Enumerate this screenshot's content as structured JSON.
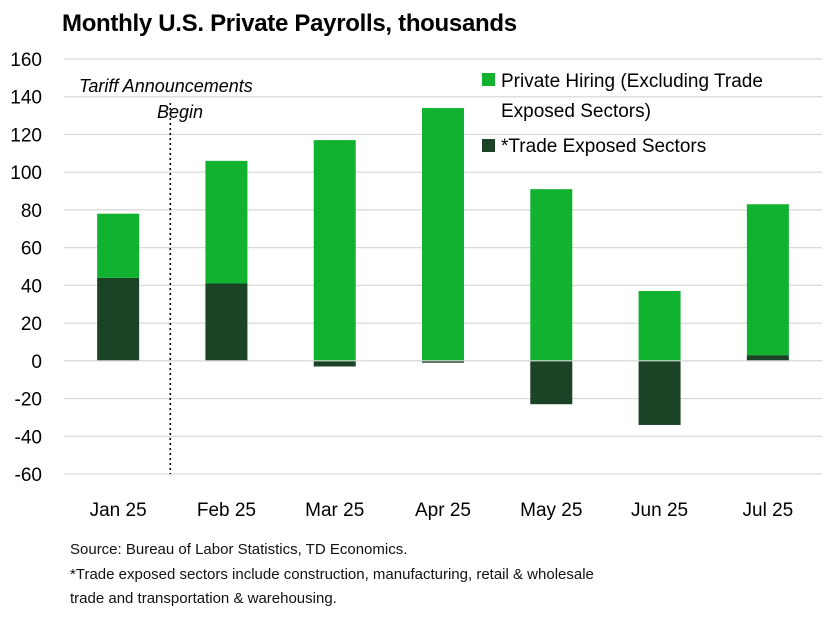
{
  "colors": {
    "private_hiring": "#11b22f",
    "trade_exposed": "#1b4326",
    "grid": "#d9d9d9"
  },
  "chart_data": {
    "type": "bar",
    "stacked": true,
    "title": "Monthly U.S. Private Payrolls, thousands",
    "categories": [
      "Jan 25",
      "Feb 25",
      "Mar 25",
      "Apr 25",
      "May 25",
      "Jun 25",
      "Jul 25"
    ],
    "series": [
      {
        "name": "Private Hiring (Excluding Trade Exposed Sectors)",
        "legend_lines": [
          "Private Hiring (Excluding Trade",
          "Exposed Sectors)"
        ],
        "values": [
          34,
          65,
          117,
          134,
          91,
          37,
          80
        ]
      },
      {
        "name": "*Trade Exposed Sectors",
        "legend_lines": [
          "*Trade Exposed Sectors"
        ],
        "values": [
          44,
          41,
          -3,
          -1,
          -23,
          -34,
          3
        ]
      }
    ],
    "ylim": [
      -60,
      160
    ],
    "yticks": [
      -60,
      -40,
      -20,
      0,
      20,
      40,
      60,
      80,
      100,
      120,
      140,
      160
    ],
    "ytick_labels": [
      "-60",
      "-40",
      "-20",
      "0",
      "20",
      "40",
      "60",
      "80",
      "100",
      "120",
      "140",
      "160"
    ],
    "grid": true,
    "legend_position": "top-right",
    "annotation": {
      "lines": [
        "Tariff Announcements",
        "Begin"
      ],
      "between_categories": [
        "Jan 25",
        "Feb 25"
      ]
    }
  },
  "footnotes": [
    "Source: Bureau of Labor Statistics, TD Economics.",
    "*Trade exposed sectors include construction, manufacturing, retail & wholesale",
    "trade and transportation & warehousing."
  ]
}
